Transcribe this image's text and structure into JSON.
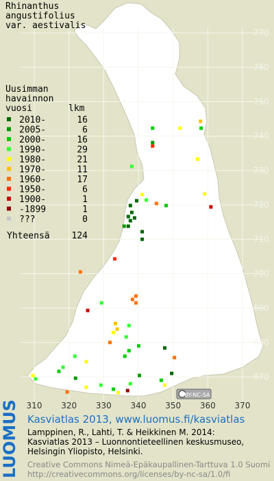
{
  "title": [
    "Rhinanthus",
    "angustifolius",
    "var. aestivalis"
  ],
  "legend": {
    "heading": [
      "Uusimman",
      "havainnon"
    ],
    "col1": "vuosi",
    "col2": "lkm",
    "rows": [
      {
        "label": "2010-",
        "count": 16,
        "color": "#006600"
      },
      {
        "label": "2005-",
        "count": 6,
        "color": "#009900"
      },
      {
        "label": "2000-",
        "count": 16,
        "color": "#00cc00"
      },
      {
        "label": "1990-",
        "count": 29,
        "color": "#33ff33"
      },
      {
        "label": "1980-",
        "count": 21,
        "color": "#ffff00"
      },
      {
        "label": "1970-",
        "count": 11,
        "color": "#ffc000"
      },
      {
        "label": "1960-",
        "count": 17,
        "color": "#ff7000"
      },
      {
        "label": "1950-",
        "count": 6,
        "color": "#ff2a00"
      },
      {
        "label": "1900-",
        "count": 1,
        "color": "#cc0000"
      },
      {
        "label": "-1899",
        "count": 1,
        "color": "#8b0000"
      },
      {
        "label": "???",
        "count": 0,
        "color": "#c8c8c8"
      }
    ],
    "total_label": "Yhteensä",
    "total": 124
  },
  "xticks": [
    310,
    320,
    330,
    340,
    350,
    360,
    370
  ],
  "yticks": [
    670,
    680,
    690,
    700,
    710,
    720,
    730,
    740,
    750,
    760,
    770
  ],
  "points": [
    {
      "x": 357.9,
      "y": 744.3,
      "c": 5
    },
    {
      "x": 358.1,
      "y": 742.3,
      "c": 2
    },
    {
      "x": 352,
      "y": 742.3,
      "c": 4
    },
    {
      "x": 344.1,
      "y": 742.3,
      "c": 2
    },
    {
      "x": 344.1,
      "y": 738.1,
      "c": 1
    },
    {
      "x": 344.1,
      "y": 737.1,
      "c": 7
    },
    {
      "x": 357.1,
      "y": 733.3,
      "c": 4
    },
    {
      "x": 338.1,
      "y": 731.2,
      "c": 3
    },
    {
      "x": 359.1,
      "y": 723.2,
      "c": 4
    },
    {
      "x": 341.1,
      "y": 723,
      "c": 4
    },
    {
      "x": 342.3,
      "y": 721.4,
      "c": 3
    },
    {
      "x": 339.5,
      "y": 721.2,
      "c": 0
    },
    {
      "x": 348,
      "y": 719.8,
      "c": 2
    },
    {
      "x": 345.2,
      "y": 720.4,
      "c": 6
    },
    {
      "x": 360.9,
      "y": 719.4,
      "c": 8
    },
    {
      "x": 337.7,
      "y": 719.8,
      "c": 0
    },
    {
      "x": 338.1,
      "y": 717.8,
      "c": 0
    },
    {
      "x": 337.1,
      "y": 716.6,
      "c": 0
    },
    {
      "x": 338.9,
      "y": 716.2,
      "c": 0
    },
    {
      "x": 337.7,
      "y": 715.4,
      "c": 0
    },
    {
      "x": 335.9,
      "y": 713.8,
      "c": 1
    },
    {
      "x": 337.1,
      "y": 713.8,
      "c": 0
    },
    {
      "x": 341.1,
      "y": 712.2,
      "c": 0
    },
    {
      "x": 341.1,
      "y": 710,
      "c": 0
    },
    {
      "x": 333.2,
      "y": 704.3,
      "c": 7
    },
    {
      "x": 323.3,
      "y": 700.5,
      "c": 6
    },
    {
      "x": 329.4,
      "y": 691.5,
      "c": 3
    },
    {
      "x": 325.4,
      "y": 689.3,
      "c": 8
    },
    {
      "x": 338.3,
      "y": 692.5,
      "c": 6
    },
    {
      "x": 339.3,
      "y": 693.5,
      "c": 6
    },
    {
      "x": 339.3,
      "y": 691.5,
      "c": 6
    },
    {
      "x": 333.4,
      "y": 685.5,
      "c": 5
    },
    {
      "x": 333.9,
      "y": 683.9,
      "c": 5
    },
    {
      "x": 332.8,
      "y": 682.9,
      "c": 4
    },
    {
      "x": 337.3,
      "y": 684.9,
      "c": 3
    },
    {
      "x": 331.8,
      "y": 680,
      "c": 6
    },
    {
      "x": 336.5,
      "y": 681.6,
      "c": 3
    },
    {
      "x": 340.1,
      "y": 679,
      "c": 2
    },
    {
      "x": 337.3,
      "y": 677.6,
      "c": 2
    },
    {
      "x": 336.1,
      "y": 676,
      "c": 2
    },
    {
      "x": 347.6,
      "y": 678.4,
      "c": 0
    },
    {
      "x": 350.4,
      "y": 675.6,
      "c": 6
    },
    {
      "x": 321.7,
      "y": 676,
      "c": 3
    },
    {
      "x": 325,
      "y": 674.4,
      "c": 4
    },
    {
      "x": 318.3,
      "y": 672.8,
      "c": 3
    },
    {
      "x": 317.1,
      "y": 671.6,
      "c": 2
    },
    {
      "x": 309.6,
      "y": 670.4,
      "c": 4
    },
    {
      "x": 310.4,
      "y": 669.4,
      "c": 3
    },
    {
      "x": 321.9,
      "y": 669.6,
      "c": 1
    },
    {
      "x": 325,
      "y": 667,
      "c": 4
    },
    {
      "x": 319.5,
      "y": 665.6,
      "c": 6
    },
    {
      "x": 329.2,
      "y": 667.6,
      "c": 3
    },
    {
      "x": 332.8,
      "y": 666.4,
      "c": 2
    },
    {
      "x": 334.2,
      "y": 665.4,
      "c": 4
    },
    {
      "x": 336.9,
      "y": 666,
      "c": 9
    },
    {
      "x": 337.7,
      "y": 668,
      "c": 3
    },
    {
      "x": 346.6,
      "y": 669,
      "c": 2
    },
    {
      "x": 347.6,
      "y": 667.6,
      "c": 4
    },
    {
      "x": 349.6,
      "y": 671,
      "c": 0
    },
    {
      "x": 340.3,
      "y": 670.4,
      "c": 1
    }
  ],
  "license_badge": "BY-NC-SA",
  "footer": {
    "logo": "LUOMUS",
    "link": "Kasviatlas 2013, www.luomus.fi/kasviatlas",
    "citation": [
      "Lamppinen, R., Lahti, T. & Heikkinen M. 2014:",
      "Kasviatlas 2013 – Luonnontieteellinen keskusmuseo,",
      "Helsingin Yliopisto, Helsinki."
    ],
    "license": [
      "Creative Commons Nimeä-Epäkaupallinen-Tarttuva 1.0 Suomi",
      "http://creativecommons.org/licenses/by-nc-sa/1.0/fi"
    ]
  }
}
